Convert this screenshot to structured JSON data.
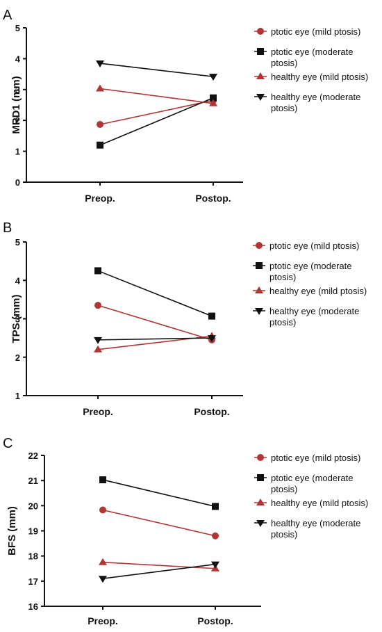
{
  "colors": {
    "red": "#b03535",
    "black": "#111111"
  },
  "series_style": [
    {
      "marker": "circle",
      "color": "#b03535"
    },
    {
      "marker": "square",
      "color": "#111111"
    },
    {
      "marker": "triangle-up",
      "color": "#b03535"
    },
    {
      "marker": "triangle-down",
      "color": "#111111"
    }
  ],
  "chart_data": [
    {
      "panel": "A",
      "type": "line",
      "ylabel": "MRD1 (mm)",
      "categories": [
        "Preop.",
        "Postop."
      ],
      "ylim": [
        0,
        5
      ],
      "yticks": [
        "0",
        "1",
        "2",
        "3",
        "4",
        "5"
      ],
      "legend": [
        "ptotic eye (mild ptosis)",
        "ptotic eye (moderate ptosis)",
        "healthy eye (mild ptosis)",
        "healthy eye (moderate ptosis)"
      ],
      "series": [
        {
          "name": "ptotic eye (mild ptosis)",
          "values": [
            1.87,
            2.65
          ]
        },
        {
          "name": "ptotic eye (moderate ptosis)",
          "values": [
            1.2,
            2.73
          ]
        },
        {
          "name": "healthy eye (mild ptosis)",
          "values": [
            3.03,
            2.55
          ]
        },
        {
          "name": "healthy eye (moderate ptosis)",
          "values": [
            3.85,
            3.42
          ]
        }
      ]
    },
    {
      "panel": "B",
      "type": "line",
      "ylabel": "TPS (mm)",
      "categories": [
        "Preop.",
        "Postop."
      ],
      "ylim": [
        1,
        5
      ],
      "yticks": [
        "1",
        "2",
        "3",
        "4",
        "5"
      ],
      "legend": [
        "ptotic eye (mild ptosis)",
        "ptotic eye (moderate ptosis)",
        "healthy eye (mild ptosis)",
        "healthy eye (moderate ptosis)"
      ],
      "series": [
        {
          "name": "ptotic eye (mild ptosis)",
          "values": [
            3.35,
            2.45
          ]
        },
        {
          "name": "ptotic eye (moderate ptosis)",
          "values": [
            4.25,
            3.07
          ]
        },
        {
          "name": "healthy eye (mild ptosis)",
          "values": [
            2.2,
            2.55
          ]
        },
        {
          "name": "healthy eye (moderate ptosis)",
          "values": [
            2.45,
            2.5
          ]
        }
      ]
    },
    {
      "panel": "C",
      "type": "line",
      "ylabel": "BFS (mm)",
      "categories": [
        "Preop.",
        "Postop."
      ],
      "ylim": [
        16,
        22
      ],
      "yticks": [
        "16",
        "17",
        "18",
        "19",
        "20",
        "21",
        "22"
      ],
      "legend": [
        "ptotic eye (mild ptosis)",
        "ptotic eye (moderate ptosis)",
        "healthy eye (mild ptosis)",
        "healthy eye (moderate ptosis)"
      ],
      "series": [
        {
          "name": "ptotic eye (mild ptosis)",
          "values": [
            19.83,
            18.8
          ]
        },
        {
          "name": "ptotic eye (moderate ptosis)",
          "values": [
            21.03,
            19.97
          ]
        },
        {
          "name": "healthy eye (mild ptosis)",
          "values": [
            17.75,
            17.5
          ]
        },
        {
          "name": "healthy eye (moderate ptosis)",
          "values": [
            17.1,
            17.67
          ]
        }
      ]
    }
  ]
}
